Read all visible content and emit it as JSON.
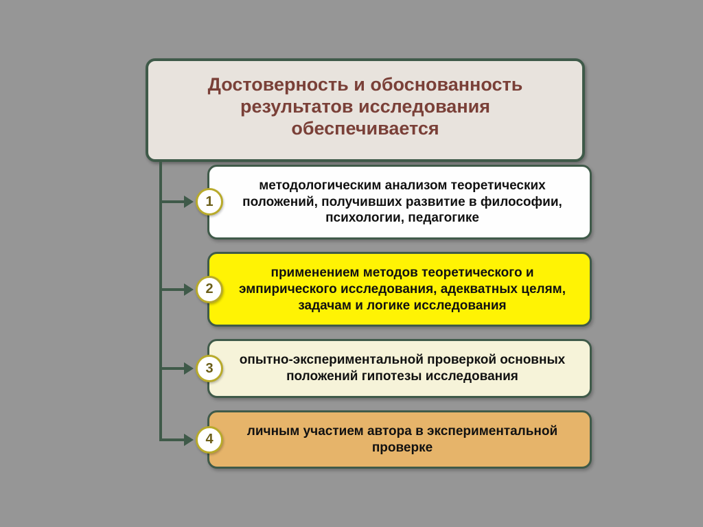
{
  "title": {
    "text": "Достоверность и обоснованность результатов исследования обеспечивается",
    "color": "#7a4038",
    "background": "#e8e3dd",
    "border": "#3f5a49"
  },
  "connector_color": "#3f5a49",
  "badge_border": "#b8aa2a",
  "badge_text_color": "#6b5e18",
  "items": [
    {
      "num": "1",
      "text": "методологическим анализом теоретических положений, получивших развитие в философии, психологии, педагогике",
      "background": "#fefefe",
      "text_color": "#111111"
    },
    {
      "num": "2",
      "text": "применением методов теоретического и эмпирического исследования, адекватных целям, задачам и логике исследования",
      "background": "#fff304",
      "text_color": "#111111"
    },
    {
      "num": "3",
      "text": "опытно-экспериментальной проверкой основных положений гипотезы исследования",
      "background": "#f6f3d9",
      "text_color": "#111111"
    },
    {
      "num": "4",
      "text": "личным участием автора в экспериментальной проверке",
      "background": "#e6b46a",
      "text_color": "#111111"
    }
  ]
}
